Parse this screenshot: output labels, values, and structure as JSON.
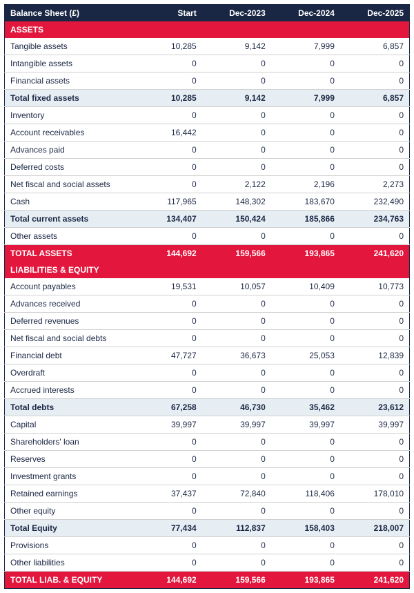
{
  "title": "Balance Sheet (£)",
  "columns": [
    "Start",
    "Dec-2023",
    "Dec-2024",
    "Dec-2025"
  ],
  "colors": {
    "header_bg": "#1a2744",
    "header_fg": "#ffffff",
    "section_bg": "#e3173e",
    "section_fg": "#ffffff",
    "subtotal_bg": "#e6eef3",
    "subtotal_fg": "#1a2744",
    "row_fg": "#1a2744",
    "border": "#d0d0d0"
  },
  "rows": [
    {
      "type": "section",
      "label": "ASSETS"
    },
    {
      "type": "data",
      "label": "Tangible assets",
      "values": [
        "10,285",
        "9,142",
        "7,999",
        "6,857"
      ]
    },
    {
      "type": "data",
      "label": "Intangible assets",
      "values": [
        "0",
        "0",
        "0",
        "0"
      ]
    },
    {
      "type": "data",
      "label": "Financial assets",
      "values": [
        "0",
        "0",
        "0",
        "0"
      ]
    },
    {
      "type": "subtotal",
      "label": "Total fixed assets",
      "values": [
        "10,285",
        "9,142",
        "7,999",
        "6,857"
      ]
    },
    {
      "type": "data",
      "label": "Inventory",
      "values": [
        "0",
        "0",
        "0",
        "0"
      ]
    },
    {
      "type": "data",
      "label": "Account receivables",
      "values": [
        "16,442",
        "0",
        "0",
        "0"
      ]
    },
    {
      "type": "data",
      "label": "Advances paid",
      "values": [
        "0",
        "0",
        "0",
        "0"
      ]
    },
    {
      "type": "data",
      "label": "Deferred costs",
      "values": [
        "0",
        "0",
        "0",
        "0"
      ]
    },
    {
      "type": "data",
      "label": "Net fiscal and social assets",
      "values": [
        "0",
        "2,122",
        "2,196",
        "2,273"
      ]
    },
    {
      "type": "data",
      "label": "Cash",
      "values": [
        "117,965",
        "148,302",
        "183,670",
        "232,490"
      ]
    },
    {
      "type": "subtotal",
      "label": "Total current assets",
      "values": [
        "134,407",
        "150,424",
        "185,866",
        "234,763"
      ]
    },
    {
      "type": "data",
      "label": "Other assets",
      "values": [
        "0",
        "0",
        "0",
        "0"
      ]
    },
    {
      "type": "total",
      "label": "TOTAL ASSETS",
      "values": [
        "144,692",
        "159,566",
        "193,865",
        "241,620"
      ]
    },
    {
      "type": "section",
      "label": "LIABILITIES & EQUITY"
    },
    {
      "type": "data",
      "label": "Account payables",
      "values": [
        "19,531",
        "10,057",
        "10,409",
        "10,773"
      ]
    },
    {
      "type": "data",
      "label": "Advances received",
      "values": [
        "0",
        "0",
        "0",
        "0"
      ]
    },
    {
      "type": "data",
      "label": "Deferred revenues",
      "values": [
        "0",
        "0",
        "0",
        "0"
      ]
    },
    {
      "type": "data",
      "label": "Net fiscal and social debts",
      "values": [
        "0",
        "0",
        "0",
        "0"
      ]
    },
    {
      "type": "data",
      "label": "Financial debt",
      "values": [
        "47,727",
        "36,673",
        "25,053",
        "12,839"
      ]
    },
    {
      "type": "data",
      "label": "Overdraft",
      "values": [
        "0",
        "0",
        "0",
        "0"
      ]
    },
    {
      "type": "data",
      "label": "Accrued interests",
      "values": [
        "0",
        "0",
        "0",
        "0"
      ]
    },
    {
      "type": "subtotal",
      "label": "Total debts",
      "values": [
        "67,258",
        "46,730",
        "35,462",
        "23,612"
      ]
    },
    {
      "type": "data",
      "label": "Capital",
      "values": [
        "39,997",
        "39,997",
        "39,997",
        "39,997"
      ]
    },
    {
      "type": "data",
      "label": "Shareholders' loan",
      "values": [
        "0",
        "0",
        "0",
        "0"
      ]
    },
    {
      "type": "data",
      "label": "Reserves",
      "values": [
        "0",
        "0",
        "0",
        "0"
      ]
    },
    {
      "type": "data",
      "label": "Investment grants",
      "values": [
        "0",
        "0",
        "0",
        "0"
      ]
    },
    {
      "type": "data",
      "label": "Retained earnings",
      "values": [
        "37,437",
        "72,840",
        "118,406",
        "178,010"
      ]
    },
    {
      "type": "data",
      "label": "Other equity",
      "values": [
        "0",
        "0",
        "0",
        "0"
      ]
    },
    {
      "type": "subtotal",
      "label": "Total Equity",
      "values": [
        "77,434",
        "112,837",
        "158,403",
        "218,007"
      ]
    },
    {
      "type": "data",
      "label": "Provisions",
      "values": [
        "0",
        "0",
        "0",
        "0"
      ]
    },
    {
      "type": "data",
      "label": "Other liabilities",
      "values": [
        "0",
        "0",
        "0",
        "0"
      ]
    },
    {
      "type": "total",
      "label": "TOTAL LIAB. & EQUITY",
      "values": [
        "144,692",
        "159,566",
        "193,865",
        "241,620"
      ]
    }
  ]
}
